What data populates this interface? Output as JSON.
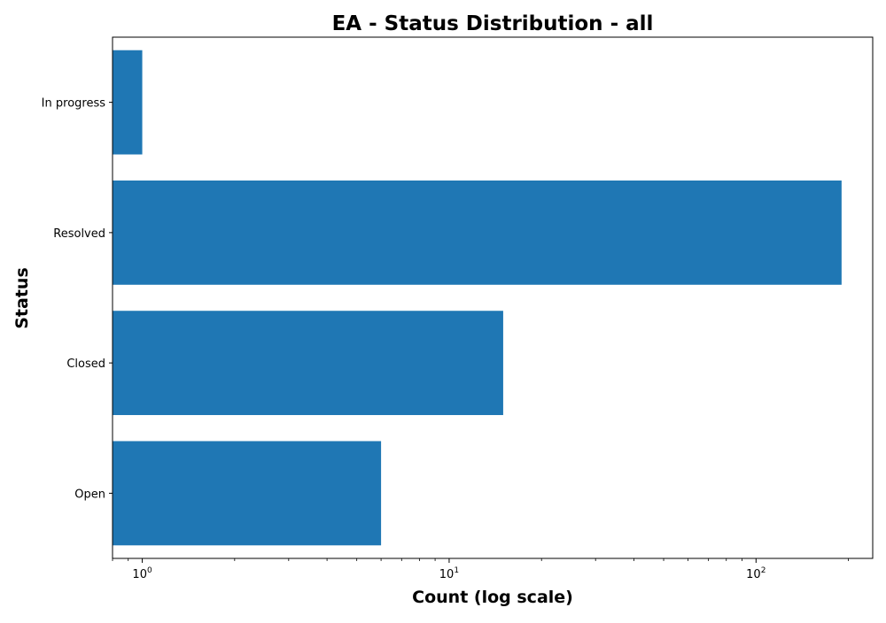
{
  "chart_data": {
    "type": "bar",
    "orientation": "horizontal",
    "title": "EA - Status Distribution - all",
    "xlabel": "Count (log scale)",
    "ylabel": "Status",
    "x_scale": "log",
    "xlim": [
      0.8,
      240
    ],
    "x_ticks": [
      {
        "base": "10",
        "exp": "0",
        "value": 1
      },
      {
        "base": "10",
        "exp": "1",
        "value": 10
      },
      {
        "base": "10",
        "exp": "2",
        "value": 100
      }
    ],
    "categories": [
      "Open",
      "Closed",
      "Resolved",
      "In progress"
    ],
    "values": [
      6,
      15,
      190,
      1
    ],
    "bar_color": "#1f77b4",
    "grid": false,
    "legend": "none"
  }
}
